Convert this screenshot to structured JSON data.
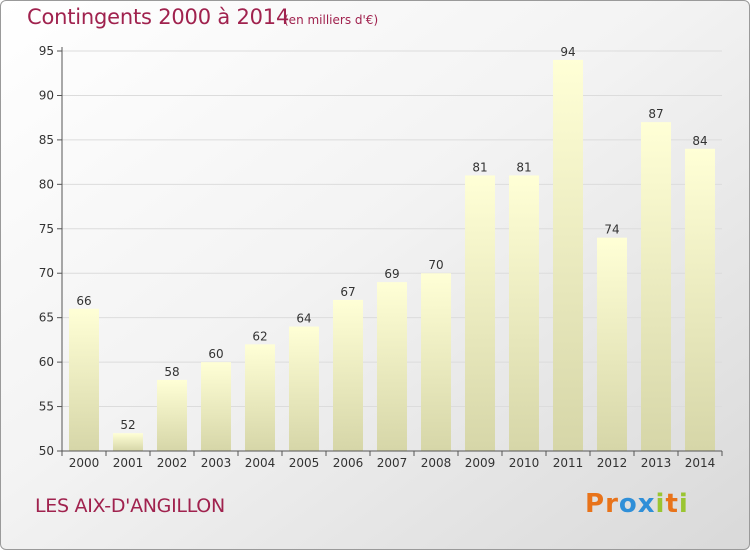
{
  "header": {
    "title": "Contingents 2000 à 2014",
    "subtitle": "(en milliers d'€)"
  },
  "footer": {
    "commune": "LES AIX-D'ANGILLON",
    "logo_text": "Proxiti"
  },
  "colors": {
    "title": "#a0224e",
    "bar_top": "#ffffd6",
    "bar_bottom": "#d6d6a8",
    "grid": "#dcdcdc",
    "logo": [
      "#e8731a",
      "#e8731a",
      "#2f8fd8",
      "#2f8fd8",
      "#9ac531",
      "#e8731a",
      "#9ac531"
    ]
  },
  "chart_data": {
    "type": "bar",
    "title": "Contingents 2000 à 2014",
    "subtitle": "(en milliers d'€)",
    "xlabel": "",
    "ylabel": "",
    "categories": [
      "2000",
      "2001",
      "2002",
      "2003",
      "2004",
      "2005",
      "2006",
      "2007",
      "2008",
      "2009",
      "2010",
      "2011",
      "2012",
      "2013",
      "2014"
    ],
    "values": [
      66,
      52,
      58,
      60,
      62,
      64,
      67,
      69,
      70,
      81,
      81,
      94,
      74,
      87,
      84
    ],
    "ylim": [
      50,
      95
    ],
    "yticks": [
      50,
      55,
      60,
      65,
      70,
      75,
      80,
      85,
      90,
      95
    ],
    "grid": true,
    "data_labels": true
  }
}
